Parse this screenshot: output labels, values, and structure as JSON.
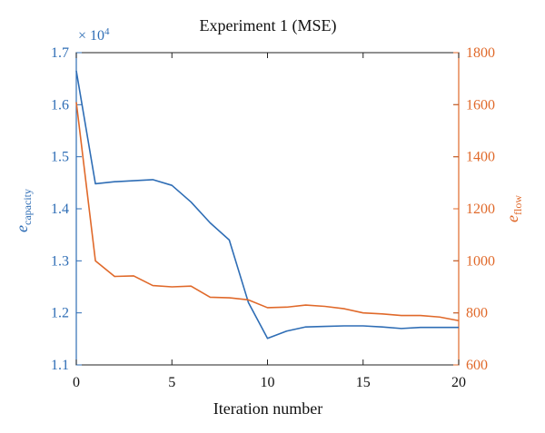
{
  "chart_data": {
    "type": "line",
    "title": "Experiment 1 (MSE)",
    "xlabel": "Iteration number",
    "x": [
      0,
      1,
      2,
      3,
      4,
      5,
      6,
      7,
      8,
      9,
      10,
      11,
      12,
      13,
      14,
      15,
      16,
      17,
      18,
      19,
      20
    ],
    "xlim": [
      0,
      20
    ],
    "xticks": [
      "0",
      "5",
      "10",
      "15",
      "20"
    ],
    "left_axis": {
      "label_main": "e",
      "label_sub": "capacity",
      "ylim": [
        1.1,
        1.7
      ],
      "ticks": [
        "1.1",
        "1.2",
        "1.3",
        "1.4",
        "1.5",
        "1.6",
        "1.7"
      ],
      "multiplier_prefix": "× 10",
      "multiplier_exp": "4"
    },
    "right_axis": {
      "label_main": "e",
      "label_sub": "flow",
      "ylim": [
        600,
        1800
      ],
      "ticks": [
        "600",
        "800",
        "1000",
        "1200",
        "1400",
        "1600",
        "1800"
      ]
    },
    "series": [
      {
        "axis": "left",
        "color": "#2e6db5",
        "values": [
          1.665,
          1.448,
          1.452,
          1.454,
          1.456,
          1.445,
          1.413,
          1.373,
          1.34,
          1.22,
          1.151,
          1.165,
          1.173,
          1.174,
          1.175,
          1.175,
          1.173,
          1.17,
          1.172,
          1.172,
          1.172
        ]
      },
      {
        "axis": "right",
        "color": "#e0692a",
        "values": [
          1610,
          1000,
          940,
          942,
          905,
          900,
          903,
          860,
          858,
          850,
          820,
          822,
          830,
          825,
          816,
          800,
          796,
          790,
          790,
          784,
          770
        ]
      }
    ],
    "grid": false,
    "colors": {
      "left_axis": "#2e6db5",
      "right_axis": "#e0692a",
      "frame": "#222222"
    }
  }
}
